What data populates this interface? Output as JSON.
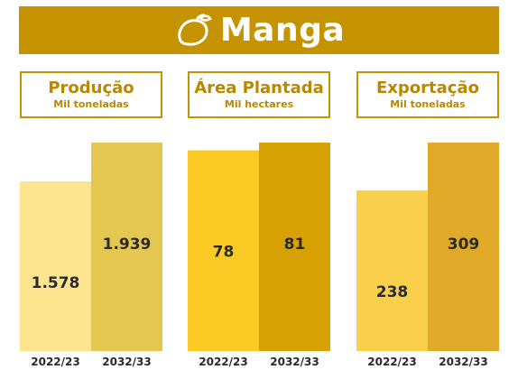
{
  "header": {
    "title": "Manga",
    "icon": "mango-icon"
  },
  "colors": {
    "accent": "#c59300",
    "label": "#b98700"
  },
  "chart_data": [
    {
      "type": "bar",
      "title": "Produção",
      "subtitle": "Mil toneladas",
      "categories": [
        "2022/23",
        "2032/33"
      ],
      "values": [
        1578,
        1939
      ],
      "value_labels": [
        "1.578",
        "1.939"
      ],
      "colors": [
        "#fde58f",
        "#e3c751"
      ]
    },
    {
      "type": "bar",
      "title": "Área Plantada",
      "subtitle": "Mil hectares",
      "categories": [
        "2022/23",
        "2032/33"
      ],
      "values": [
        78,
        81
      ],
      "value_labels": [
        "78",
        "81"
      ],
      "colors": [
        "#fcca24",
        "#d8a103"
      ]
    },
    {
      "type": "bar",
      "title": "Exportação",
      "subtitle": "Mil toneladas",
      "categories": [
        "2022/23",
        "2032/33"
      ],
      "values": [
        238,
        309
      ],
      "value_labels": [
        "238",
        "309"
      ],
      "colors": [
        "#f9cf4c",
        "#e0a927"
      ]
    }
  ]
}
